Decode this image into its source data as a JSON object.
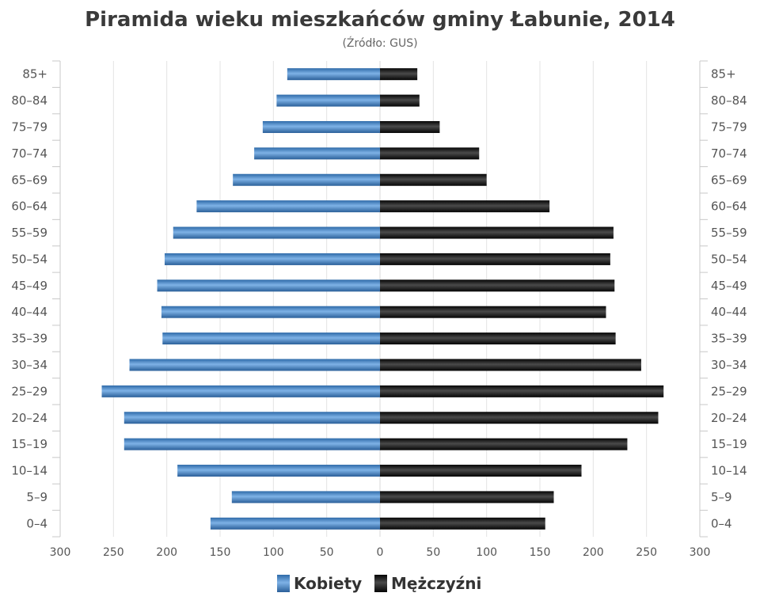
{
  "chart_data": {
    "type": "bar",
    "orientation": "horizontal-pyramid",
    "title": "Piramida wieku mieszkańców gminy Łabunie, 2014",
    "subtitle": "(Źródło: GUS)",
    "categories": [
      "85+",
      "80–84",
      "75–79",
      "70–74",
      "65–69",
      "60–64",
      "55–59",
      "50–54",
      "45–49",
      "40–44",
      "35–39",
      "30–34",
      "25–29",
      "20–24",
      "15–19",
      "10–14",
      "5–9",
      "0–4"
    ],
    "x_ticks": [
      "300",
      "250",
      "200",
      "150",
      "100",
      "50",
      "0",
      "50",
      "100",
      "150",
      "200",
      "250",
      "300"
    ],
    "xlim": [
      -300,
      300
    ],
    "grid": true,
    "legend_position": "bottom",
    "series": [
      {
        "name": "Kobiety",
        "color": "#3f7fc0",
        "values": [
          87,
          97,
          110,
          118,
          138,
          172,
          194,
          202,
          209,
          205,
          204,
          235,
          261,
          240,
          240,
          190,
          139,
          159
        ]
      },
      {
        "name": "Mężczyźni",
        "color": "#1a1a1a",
        "values": [
          35,
          37,
          56,
          93,
          100,
          159,
          219,
          216,
          220,
          212,
          221,
          245,
          266,
          261,
          232,
          189,
          163,
          155
        ]
      }
    ]
  }
}
